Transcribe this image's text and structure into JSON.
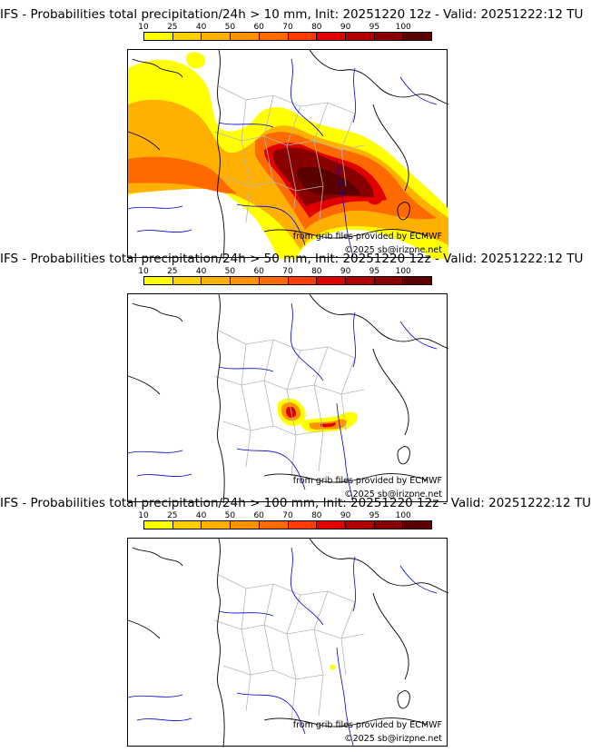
{
  "colorbar": {
    "ticks": [
      "10",
      "25",
      "40",
      "50",
      "60",
      "70",
      "80",
      "90",
      "95",
      "100"
    ],
    "colors": [
      "#ffff00",
      "#ffd000",
      "#ffb000",
      "#ff9200",
      "#ff6a00",
      "#ff3c00",
      "#e00000",
      "#b00000",
      "#880000",
      "#5a0000"
    ]
  },
  "map_colors": {
    "coast": "#000000",
    "borders": "#000000",
    "regions": "#b4b4b4",
    "rivers": "#0000dd"
  },
  "panels": [
    {
      "title": "IFS - Probabilities total precipitation/24h > 10 mm, Init: 20251220 12z - Valid: 20251222:12 TU",
      "credit_source": "from grib files provided by ECMWF",
      "credit_copyright": "©2025 sb@irizpne.net",
      "threshold": "10 mm"
    },
    {
      "title": "IFS - Probabilities total precipitation/24h > 50 mm, Init: 20251220 12z - Valid: 20251222:12 TU",
      "credit_source": "from grib files provided by ECMWF",
      "credit_copyright": "©2025 sb@irizpne.net",
      "threshold": "50 mm"
    },
    {
      "title": "IFS - Probabilities total precipitation/24h > 100 mm, Init: 20251220 12z - Valid: 20251222:12 TU",
      "credit_source": "from grib files provided by ECMWF",
      "credit_copyright": "©2025 sb@irizpne.net",
      "threshold": "100 mm"
    }
  ]
}
